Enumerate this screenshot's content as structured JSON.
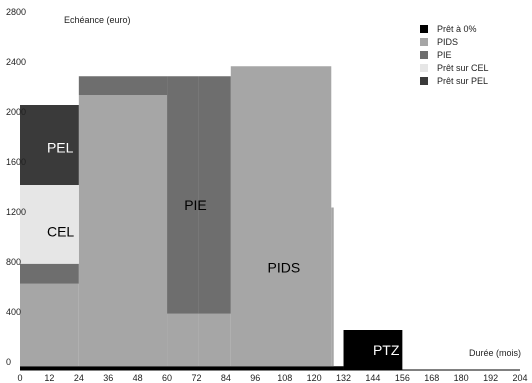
{
  "chart_data": {
    "type": "area",
    "ylabel": "Echéance (euro)",
    "xlabel": "Durée (mois)",
    "xlim": [
      0,
      204
    ],
    "ylim": [
      0,
      2800
    ],
    "x_ticks": [
      "0",
      "12",
      "24",
      "36",
      "48",
      "60",
      "72",
      "84",
      "96",
      "108",
      "120",
      "132",
      "144",
      "156",
      "168",
      "180",
      "192",
      "204"
    ],
    "y_ticks": [
      "0",
      "400",
      "800",
      "1200",
      "1600",
      "2000",
      "2400",
      "2800"
    ],
    "grid": false,
    "legend_position": "top-right",
    "series": [
      {
        "name": "Prêt à 0%",
        "color": "#000000",
        "label": "PTZ",
        "label_color": "#ffffff",
        "label_at": [
          144,
          120
        ],
        "segments": [
          {
            "x0": 0,
            "x1": 132,
            "y0": 0,
            "y1": 30
          },
          {
            "x0": 132,
            "x1": 156,
            "y0": 0,
            "y1": 320
          }
        ]
      },
      {
        "name": "PIDS",
        "color": "#a6a6a6",
        "label": "PIDS",
        "label_color": "#000000",
        "label_at": [
          101,
          780
        ],
        "segments": [
          {
            "x0": 0,
            "x1": 24,
            "y0": 30,
            "y1": 690
          },
          {
            "x0": 24,
            "x1": 60,
            "y0": 30,
            "y1": 2200
          },
          {
            "x0": 60,
            "x1": 73,
            "y0": 30,
            "y1": 450
          },
          {
            "x0": 73,
            "x1": 86,
            "y0": 30,
            "y1": 450
          },
          {
            "x0": 86,
            "x1": 127,
            "y0": 30,
            "y1": 2430
          },
          {
            "x0": 127,
            "x1": 128,
            "y0": 30,
            "y1": 1300
          }
        ]
      },
      {
        "name": "PIE",
        "color": "#6e6e6e",
        "label": "PIE",
        "label_color": "#000000",
        "label_at": [
          67,
          1280
        ],
        "segments": [
          {
            "x0": 0,
            "x1": 24,
            "y0": 690,
            "y1": 850
          },
          {
            "x0": 24,
            "x1": 60,
            "y0": 2200,
            "y1": 2350
          },
          {
            "x0": 60,
            "x1": 73,
            "y0": 450,
            "y1": 2350
          },
          {
            "x0": 73,
            "x1": 86,
            "y0": 450,
            "y1": 2350
          }
        ]
      },
      {
        "name": "Prêt sur CEL",
        "color": "#e6e6e6",
        "label": "CEL",
        "label_color": "#000000",
        "label_at": [
          11,
          1070
        ],
        "segments": [
          {
            "x0": 0,
            "x1": 24,
            "y0": 850,
            "y1": 1480
          }
        ]
      },
      {
        "name": "Prêt sur PEL",
        "color": "#3a3a3a",
        "label": "PEL",
        "label_color": "#ffffff",
        "label_at": [
          11,
          1740
        ],
        "segments": [
          {
            "x0": 0,
            "x1": 24,
            "y0": 1480,
            "y1": 2120
          }
        ]
      }
    ]
  }
}
